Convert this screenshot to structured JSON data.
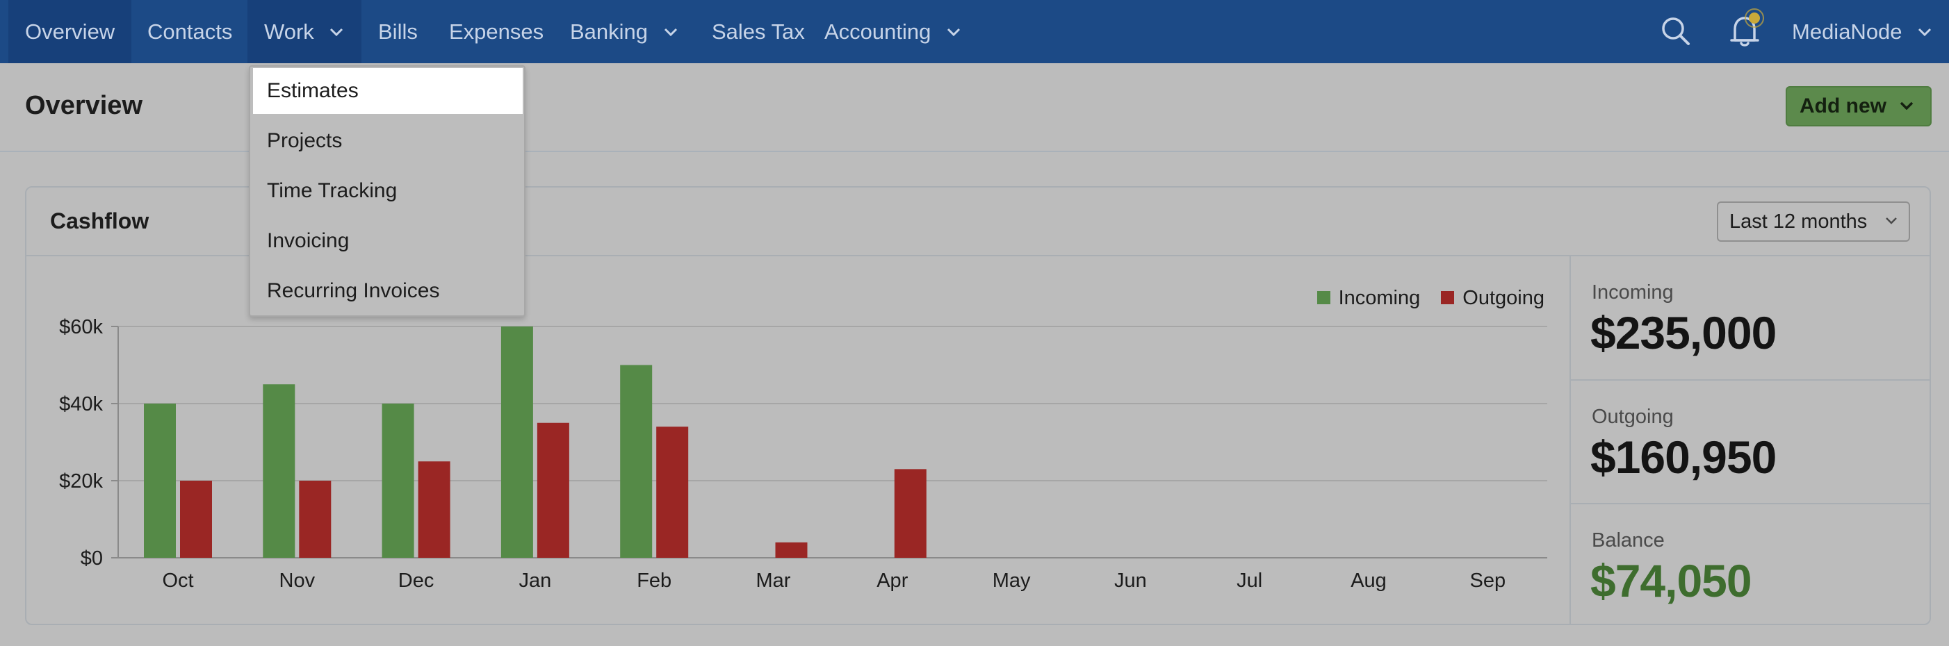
{
  "nav": {
    "items": [
      {
        "label": "Overview"
      },
      {
        "label": "Contacts"
      },
      {
        "label": "Work"
      },
      {
        "label": "Bills"
      },
      {
        "label": "Expenses"
      },
      {
        "label": "Banking"
      },
      {
        "label": "Sales Tax"
      },
      {
        "label": "Accounting"
      }
    ],
    "account": "MediaNode"
  },
  "work_menu": {
    "items": [
      "Estimates",
      "Projects",
      "Time Tracking",
      "Invoicing",
      "Recurring Invoices"
    ],
    "highlighted": "Estimates"
  },
  "page": {
    "title": "Overview",
    "add_new": "Add new"
  },
  "cashflow": {
    "title": "Cashflow",
    "range": "Last 12 months",
    "stats": {
      "incoming_label": "Incoming",
      "incoming_value": "$235,000",
      "outgoing_label": "Outgoing",
      "outgoing_value": "$160,950",
      "balance_label": "Balance",
      "balance_value": "$74,050"
    }
  },
  "colors": {
    "nav_bg": "#1c4a86",
    "incoming": "#558a47",
    "outgoing": "#9a2624",
    "add_button": "#5c8a4c"
  },
  "chart_data": {
    "type": "bar",
    "categories": [
      "Oct",
      "Nov",
      "Dec",
      "Jan",
      "Feb",
      "Mar",
      "Apr",
      "May",
      "Jun",
      "Jul",
      "Aug",
      "Sep"
    ],
    "series": [
      {
        "name": "Incoming",
        "values": [
          40000,
          45000,
          40000,
          60000,
          50000,
          0,
          0,
          0,
          0,
          0,
          0,
          0
        ]
      },
      {
        "name": "Outgoing",
        "values": [
          20000,
          20000,
          25000,
          35000,
          34000,
          4000,
          23000,
          0,
          0,
          0,
          0,
          0
        ]
      }
    ],
    "y_ticks": [
      "$0",
      "$20k",
      "$40k",
      "$60k"
    ],
    "y_tick_values": [
      0,
      20000,
      40000,
      60000
    ],
    "ylim": [
      0,
      60000
    ],
    "grid": true,
    "legend_position": "top-right"
  }
}
